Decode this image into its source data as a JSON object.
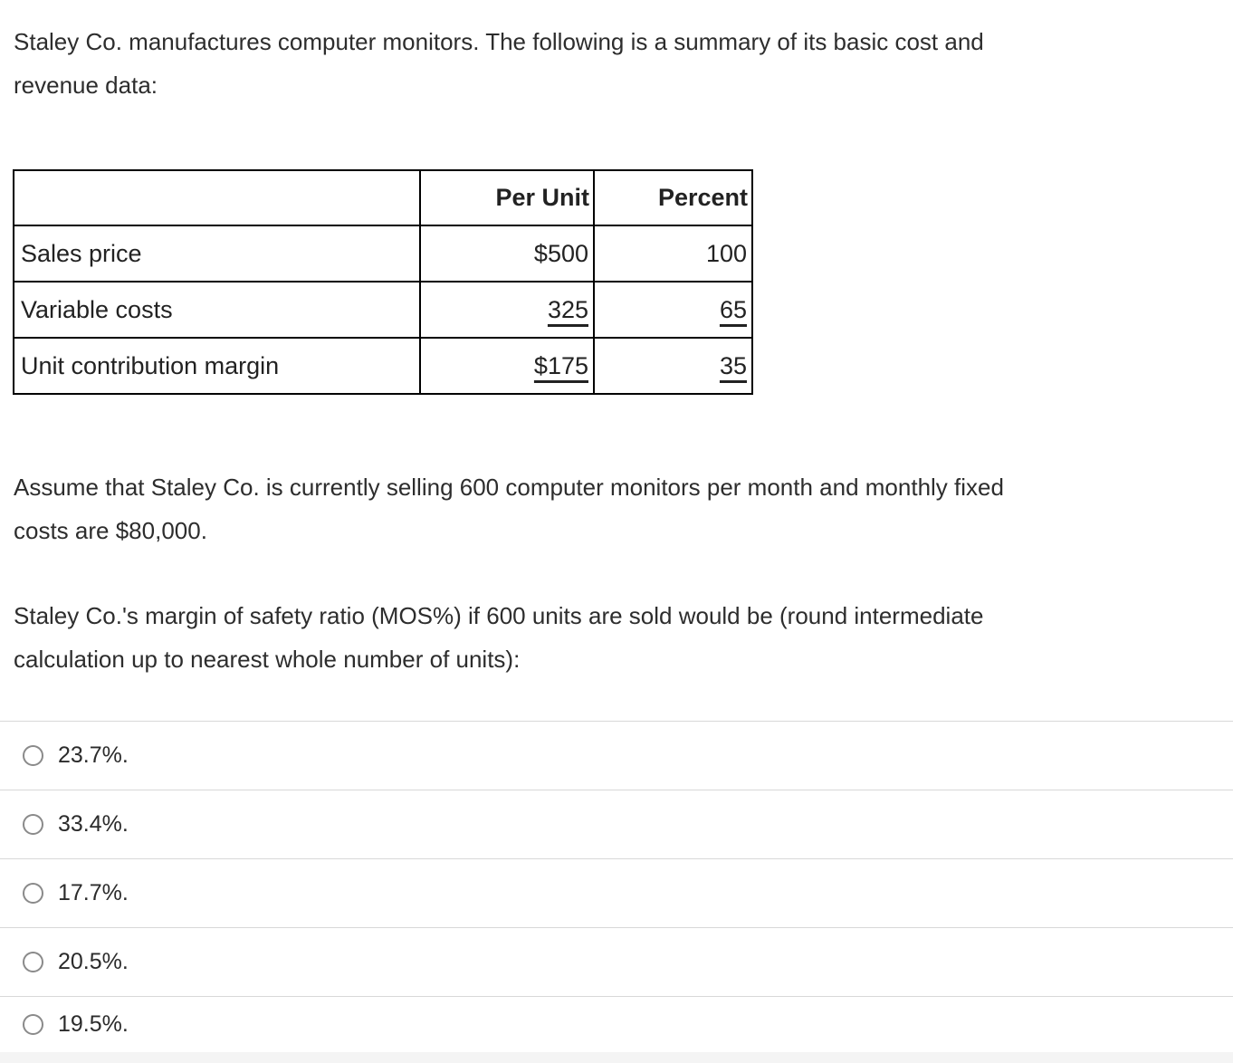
{
  "intro": {
    "line1": "Staley Co. manufactures computer monitors. The following is a summary of its basic cost and",
    "line2": "revenue data:"
  },
  "table": {
    "headers": [
      "",
      "Per Unit",
      "Percent"
    ],
    "rows": [
      {
        "label": "Sales price",
        "per_unit": "$500",
        "percent": "100"
      },
      {
        "label": "Variable costs",
        "per_unit": "325",
        "percent": "65"
      },
      {
        "label": "Unit contribution margin",
        "per_unit": "$175",
        "percent": "35"
      }
    ]
  },
  "assumption": {
    "line1": "Assume that Staley Co. is currently selling 600 computer monitors per month and monthly fixed",
    "line2": "costs are $80,000."
  },
  "question": {
    "line1": "Staley Co.'s margin of safety ratio (MOS%) if 600 units are sold would be (round intermediate",
    "line2": "calculation up to nearest whole number of units):"
  },
  "options": [
    {
      "label": "23.7%."
    },
    {
      "label": "33.4%."
    },
    {
      "label": "17.7%."
    },
    {
      "label": "20.5%."
    },
    {
      "label": "19.5%."
    }
  ],
  "colors": {
    "divider": "#d8d8d8",
    "radio_border": "#8a8a8a",
    "table_border": "#000000",
    "footer_strip": "#f4f4f4"
  }
}
